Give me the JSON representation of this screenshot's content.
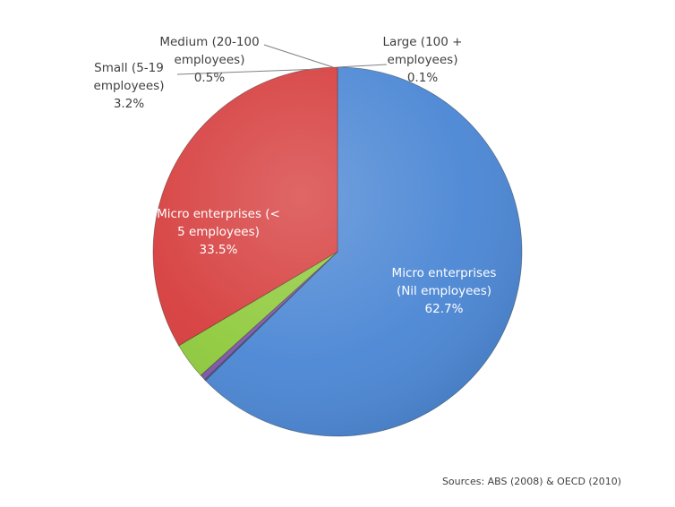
{
  "chart_data": {
    "type": "pie",
    "title": "",
    "slices": [
      {
        "label": "Micro enterprises (Nil employees)",
        "label_lines": [
          "Micro enterprises",
          "(Nil employees)"
        ],
        "pct": "62.7%",
        "value": 62.7,
        "color": "#4a86d4"
      },
      {
        "label": "Large (100 + employees)",
        "label_lines": [
          "Large (100 +",
          "employees)"
        ],
        "pct": "0.1%",
        "value": 0.1,
        "color": "#4f6f99"
      },
      {
        "label": "Medium (20-100 employees)",
        "label_lines": [
          "Medium (20-100",
          "employees)"
        ],
        "pct": "0.5%",
        "value": 0.5,
        "color": "#7d55a8"
      },
      {
        "label": "Small (5-19 employees)",
        "label_lines": [
          "Small (5-19",
          "employees)"
        ],
        "pct": "3.2%",
        "value": 3.2,
        "color": "#8fca3c"
      },
      {
        "label": "Micro enterprises (< 5 employees)",
        "label_lines": [
          "Micro enterprises  (<",
          "5 employees)"
        ],
        "pct": "33.5%",
        "value": 33.5,
        "color": "#d63c3c"
      }
    ],
    "source": "Sources: ABS (2008) & OECD (2010)"
  }
}
